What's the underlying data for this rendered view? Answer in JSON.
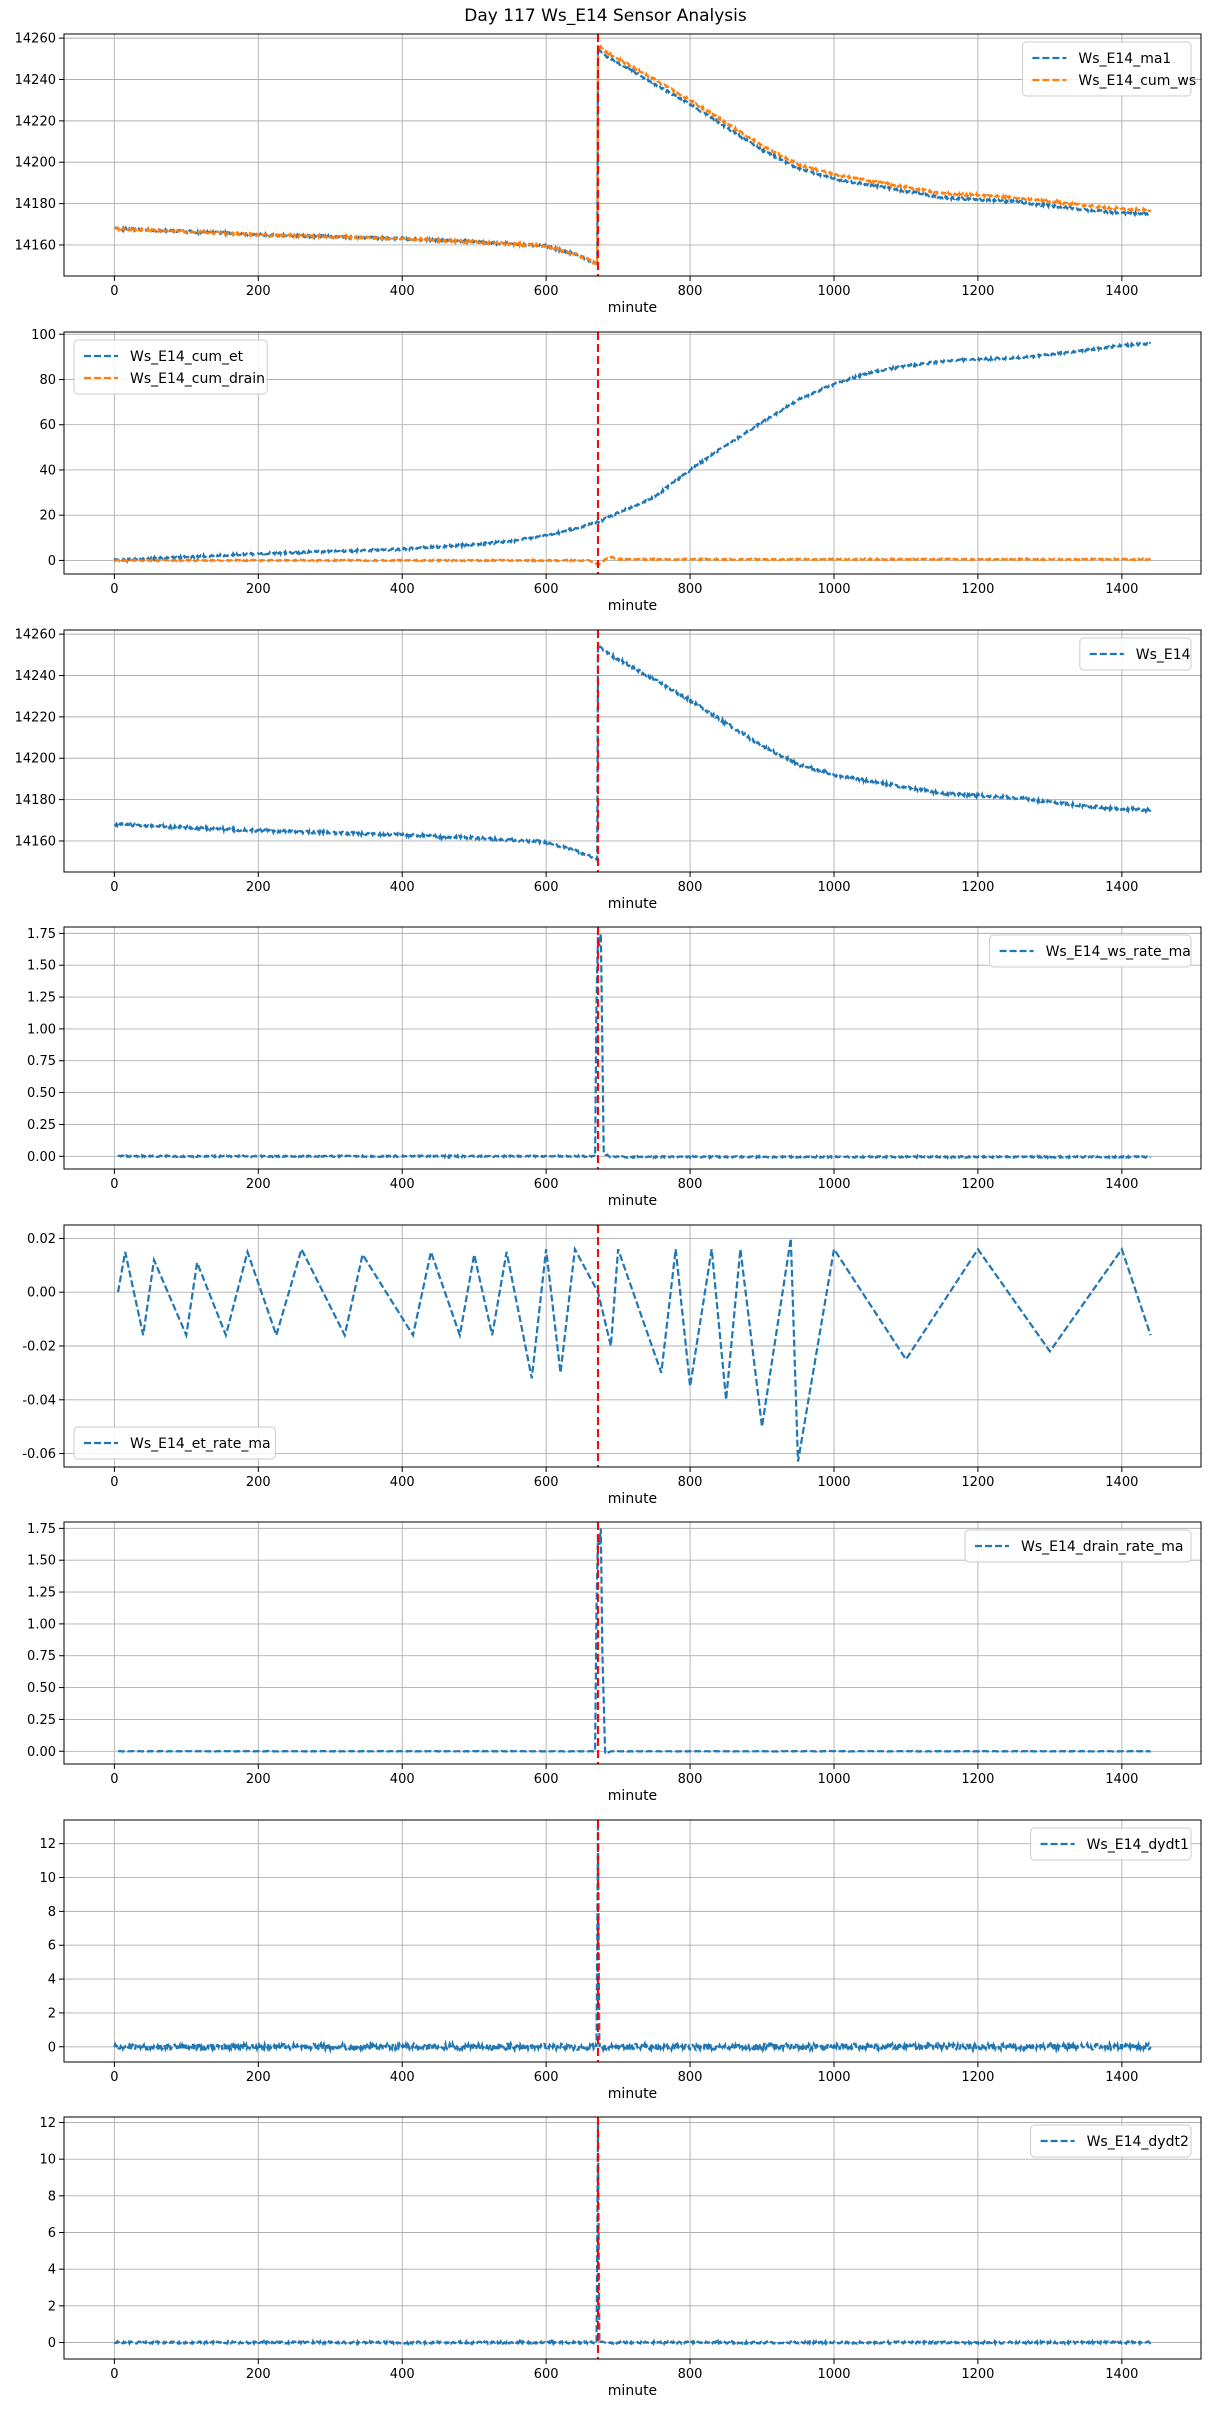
{
  "figure": {
    "title": "Day 117 Ws_E14 Sensor Analysis"
  },
  "colors": {
    "blue": "#1f77b4",
    "orange": "#ff7f0e",
    "event_line": "#ff0000",
    "grid": "#b0b0b0"
  },
  "chart_data": [
    {
      "type": "line",
      "xlabel": "minute",
      "xlim": [
        -70,
        1510
      ],
      "ylim": [
        14145,
        14262
      ],
      "x_ticks": [
        0,
        200,
        400,
        600,
        800,
        1000,
        1200,
        1400
      ],
      "y_ticks": [
        14160,
        14180,
        14200,
        14220,
        14240,
        14260
      ],
      "y_tick_labels": [
        "14160",
        "14180",
        "14200",
        "14220",
        "14240",
        "14260"
      ],
      "legend_position": "upper-right",
      "event_line_x": 672,
      "series": [
        {
          "name": "Ws_E14_ma1",
          "color": "blue",
          "noise": 0.6,
          "x": [
            0,
            100,
            200,
            300,
            400,
            500,
            600,
            640,
            671,
            672,
            680,
            700,
            750,
            800,
            850,
            900,
            950,
            1000,
            1050,
            1100,
            1150,
            1200,
            1250,
            1300,
            1350,
            1400,
            1440
          ],
          "y": [
            14168,
            14166.5,
            14165,
            14164,
            14163,
            14161.5,
            14159.5,
            14155.5,
            14151,
            14255,
            14252,
            14248,
            14238,
            14228,
            14217,
            14206,
            14197,
            14192,
            14189,
            14186,
            14183,
            14182,
            14181,
            14179,
            14177,
            14175.5,
            14175
          ]
        },
        {
          "name": "Ws_E14_cum_ws",
          "color": "orange",
          "noise": 0.6,
          "x": [
            0,
            100,
            200,
            300,
            400,
            500,
            600,
            640,
            671,
            672,
            680,
            700,
            750,
            800,
            850,
            900,
            950,
            1000,
            1050,
            1100,
            1150,
            1200,
            1250,
            1300,
            1350,
            1400,
            1440
          ],
          "y": [
            14168,
            14166.5,
            14165,
            14164,
            14163,
            14161.5,
            14159.5,
            14155.5,
            14151,
            14257,
            14254,
            14250,
            14240,
            14230,
            14219,
            14208,
            14199,
            14194,
            14191,
            14188,
            14185,
            14184,
            14183,
            14181,
            14179,
            14177.5,
            14177
          ]
        }
      ]
    },
    {
      "type": "line",
      "xlabel": "minute",
      "xlim": [
        -70,
        1510
      ],
      "ylim": [
        -6,
        101
      ],
      "x_ticks": [
        0,
        200,
        400,
        600,
        800,
        1000,
        1200,
        1400
      ],
      "y_ticks": [
        0,
        20,
        40,
        60,
        80,
        100
      ],
      "y_tick_labels": [
        "0",
        "20",
        "40",
        "60",
        "80",
        "100"
      ],
      "legend_position": "upper-left",
      "event_line_x": 672,
      "series": [
        {
          "name": "Ws_E14_cum_et",
          "color": "blue",
          "noise": 0.5,
          "x": [
            0,
            100,
            200,
            300,
            400,
            500,
            550,
            600,
            650,
            672,
            700,
            750,
            800,
            850,
            900,
            950,
            1000,
            1050,
            1100,
            1150,
            1200,
            1250,
            1300,
            1350,
            1400,
            1440
          ],
          "y": [
            0,
            1.5,
            3,
            4,
            5,
            7,
            8.5,
            11,
            15,
            17,
            21,
            28,
            40,
            51,
            61,
            71,
            78,
            83,
            86,
            88,
            89,
            89.5,
            91,
            93,
            95,
            96
          ]
        },
        {
          "name": "Ws_E14_cum_drain",
          "color": "orange",
          "noise": 0.3,
          "x": [
            0,
            660,
            672,
            680,
            690,
            700,
            1440
          ],
          "y": [
            0,
            0,
            -2,
            0,
            1.5,
            0.5,
            0.5
          ]
        }
      ]
    },
    {
      "type": "line",
      "xlabel": "minute",
      "xlim": [
        -70,
        1510
      ],
      "ylim": [
        14145,
        14262
      ],
      "x_ticks": [
        0,
        200,
        400,
        600,
        800,
        1000,
        1200,
        1400
      ],
      "y_ticks": [
        14160,
        14180,
        14200,
        14220,
        14240,
        14260
      ],
      "y_tick_labels": [
        "14160",
        "14180",
        "14200",
        "14220",
        "14240",
        "14260"
      ],
      "legend_position": "upper-right",
      "event_line_x": 672,
      "series": [
        {
          "name": "Ws_E14",
          "color": "blue",
          "noise": 0.7,
          "x": [
            0,
            100,
            200,
            300,
            400,
            500,
            600,
            640,
            671,
            672,
            680,
            700,
            750,
            800,
            850,
            900,
            950,
            1000,
            1050,
            1100,
            1150,
            1200,
            1250,
            1300,
            1350,
            1400,
            1440
          ],
          "y": [
            14168,
            14166.5,
            14165,
            14164,
            14163,
            14161.5,
            14159.5,
            14155.5,
            14151,
            14255,
            14252,
            14248,
            14238,
            14228,
            14217,
            14206,
            14197,
            14192,
            14189,
            14186,
            14183,
            14182,
            14181,
            14179,
            14177,
            14175.5,
            14175
          ]
        }
      ]
    },
    {
      "type": "line",
      "xlabel": "minute",
      "xlim": [
        -70,
        1510
      ],
      "ylim": [
        -0.1,
        1.8
      ],
      "x_ticks": [
        0,
        200,
        400,
        600,
        800,
        1000,
        1200,
        1400
      ],
      "y_ticks": [
        0,
        0.25,
        0.5,
        0.75,
        1.0,
        1.25,
        1.5,
        1.75
      ],
      "y_tick_labels": [
        "0.00",
        "0.25",
        "0.50",
        "0.75",
        "1.00",
        "1.25",
        "1.50",
        "1.75"
      ],
      "legend_position": "upper-right",
      "event_line_x": 672,
      "series": [
        {
          "name": "Ws_E14_ws_rate_ma",
          "color": "blue",
          "noise": 0.006,
          "x": [
            5,
            668,
            670,
            672,
            674,
            676,
            678,
            680,
            690,
            1440
          ],
          "y": [
            0,
            0,
            1.2,
            1.72,
            1.65,
            1.75,
            0.9,
            0.02,
            -0.005,
            -0.005
          ]
        }
      ]
    },
    {
      "type": "line",
      "xlabel": "minute",
      "xlim": [
        -70,
        1510
      ],
      "ylim": [
        -0.065,
        0.025
      ],
      "x_ticks": [
        0,
        200,
        400,
        600,
        800,
        1000,
        1200,
        1400
      ],
      "y_ticks": [
        -0.06,
        -0.04,
        -0.02,
        0.0,
        0.02
      ],
      "y_tick_labels": [
        "-0.06",
        "-0.04",
        "-0.02",
        "0.00",
        "0.02"
      ],
      "legend_position": "lower-left",
      "event_line_x": 672,
      "series": [
        {
          "name": "Ws_E14_et_rate_ma",
          "color": "blue",
          "noise": 0,
          "x": [
            5,
            15,
            40,
            55,
            100,
            115,
            155,
            185,
            225,
            260,
            320,
            345,
            415,
            440,
            480,
            500,
            525,
            545,
            580,
            600,
            620,
            640,
            672,
            690,
            700,
            760,
            780,
            800,
            830,
            850,
            870,
            900,
            940,
            950,
            1000,
            1100,
            1200,
            1300,
            1400,
            1440
          ],
          "y": [
            0,
            0.015,
            -0.016,
            0.012,
            -0.016,
            0.011,
            -0.016,
            0.015,
            -0.016,
            0.016,
            -0.016,
            0.014,
            -0.016,
            0.015,
            -0.016,
            0.014,
            -0.016,
            0.015,
            -0.032,
            0.016,
            -0.03,
            0.016,
            0,
            -0.02,
            0.016,
            -0.03,
            0.016,
            -0.035,
            0.016,
            -0.04,
            0.016,
            -0.05,
            0.02,
            -0.063,
            0.016,
            -0.025,
            0.016,
            -0.022,
            0.016,
            -0.016
          ]
        }
      ]
    },
    {
      "type": "line",
      "xlabel": "minute",
      "xlim": [
        -70,
        1510
      ],
      "ylim": [
        -0.1,
        1.8
      ],
      "x_ticks": [
        0,
        200,
        400,
        600,
        800,
        1000,
        1200,
        1400
      ],
      "y_ticks": [
        0,
        0.25,
        0.5,
        0.75,
        1.0,
        1.25,
        1.5,
        1.75
      ],
      "y_tick_labels": [
        "0.00",
        "0.25",
        "0.50",
        "0.75",
        "1.00",
        "1.25",
        "1.50",
        "1.75"
      ],
      "legend_position": "upper-right",
      "event_line_x": 672,
      "series": [
        {
          "name": "Ws_E14_drain_rate_ma",
          "color": "blue",
          "noise": 0.002,
          "x": [
            5,
            668,
            670,
            672,
            674,
            676,
            678,
            682,
            690,
            1440
          ],
          "y": [
            0,
            0,
            1.1,
            1.7,
            1.62,
            1.75,
            0.8,
            -0.02,
            0,
            0
          ]
        }
      ]
    },
    {
      "type": "line",
      "xlabel": "minute",
      "xlim": [
        -70,
        1510
      ],
      "ylim": [
        -0.9,
        13.4
      ],
      "x_ticks": [
        0,
        200,
        400,
        600,
        800,
        1000,
        1200,
        1400
      ],
      "y_ticks": [
        0,
        2,
        4,
        6,
        8,
        10,
        12
      ],
      "y_tick_labels": [
        "0",
        "2",
        "4",
        "6",
        "8",
        "10",
        "12"
      ],
      "legend_position": "upper-right",
      "event_line_x": 672,
      "series": [
        {
          "name": "Ws_E14_dydt1",
          "color": "blue",
          "noise": 0.18,
          "x": [
            0,
            670,
            671,
            672,
            673,
            674,
            1440
          ],
          "y": [
            0,
            0,
            6,
            13,
            6,
            0,
            0
          ]
        }
      ]
    },
    {
      "type": "line",
      "xlabel": "minute",
      "xlim": [
        -70,
        1510
      ],
      "ylim": [
        -0.9,
        12.3
      ],
      "x_ticks": [
        0,
        200,
        400,
        600,
        800,
        1000,
        1200,
        1400
      ],
      "y_ticks": [
        0,
        2,
        4,
        6,
        8,
        10,
        12
      ],
      "y_tick_labels": [
        "0",
        "2",
        "4",
        "6",
        "8",
        "10",
        "12"
      ],
      "legend_position": "upper-right",
      "event_line_x": 672,
      "series": [
        {
          "name": "Ws_E14_dydt2",
          "color": "blue",
          "noise": 0.06,
          "x": [
            0,
            670,
            671,
            672,
            673,
            674,
            1440
          ],
          "y": [
            0,
            0,
            5,
            12,
            5,
            0,
            0
          ]
        }
      ]
    }
  ]
}
